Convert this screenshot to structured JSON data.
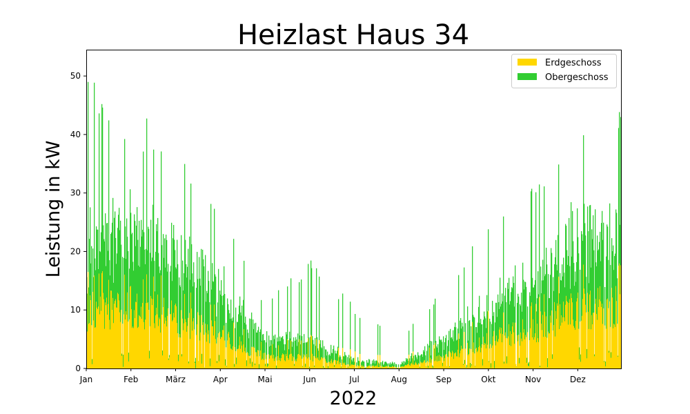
{
  "chart_data": {
    "type": "area",
    "stacked": true,
    "title": "Heizlast Haus 34",
    "xlabel": "2022",
    "ylabel": "Leistung in kW",
    "x_unit": "month",
    "xlim": [
      "Jan",
      "Dez"
    ],
    "ylim": [
      0,
      54.5
    ],
    "yticks": [
      0,
      10,
      20,
      30,
      40,
      50
    ],
    "xticks": [
      "Jan",
      "Feb",
      "März",
      "Apr",
      "Mai",
      "Jun",
      "Jul",
      "Aug",
      "Sep",
      "Okt",
      "Nov",
      "Dez"
    ],
    "grid": false,
    "legend_position": "top-right",
    "series": [
      {
        "name": "Erdgeschoss",
        "color": "#FFD700",
        "envelope_by_month": [
          {
            "month": "Jan",
            "typical": 10,
            "peak": 17
          },
          {
            "month": "Feb",
            "typical": 11,
            "peak": 18
          },
          {
            "month": "März",
            "typical": 9,
            "peak": 15
          },
          {
            "month": "Apr",
            "typical": 6,
            "peak": 11
          },
          {
            "month": "Mai",
            "typical": 2,
            "peak": 4
          },
          {
            "month": "Jun",
            "typical": 2,
            "peak": 6
          },
          {
            "month": "Jul",
            "typical": 0.5,
            "peak": 3
          },
          {
            "month": "Aug",
            "typical": 0.3,
            "peak": 2
          },
          {
            "month": "Sep",
            "typical": 2,
            "peak": 5
          },
          {
            "month": "Okt",
            "typical": 5,
            "peak": 10
          },
          {
            "month": "Nov",
            "typical": 7,
            "peak": 12
          },
          {
            "month": "Dez",
            "typical": 11,
            "peak": 20
          }
        ]
      },
      {
        "name": "Obergeschoss",
        "color": "#32CD32",
        "envelope_by_month": [
          {
            "month": "Jan",
            "typical": 12,
            "peak": 34
          },
          {
            "month": "Feb",
            "typical": 13,
            "peak": 28
          },
          {
            "month": "März",
            "typical": 11,
            "peak": 25
          },
          {
            "month": "Apr",
            "typical": 8,
            "peak": 17
          },
          {
            "month": "Mai",
            "typical": 3,
            "peak": 8
          },
          {
            "month": "Jun",
            "typical": 3,
            "peak": 13
          },
          {
            "month": "Jul",
            "typical": 1,
            "peak": 8
          },
          {
            "month": "Aug",
            "typical": 0.5,
            "peak": 3
          },
          {
            "month": "Sep",
            "typical": 3,
            "peak": 10
          },
          {
            "month": "Okt",
            "typical": 6,
            "peak": 16
          },
          {
            "month": "Nov",
            "typical": 8,
            "peak": 20
          },
          {
            "month": "Dez",
            "typical": 12,
            "peak": 27
          }
        ]
      }
    ]
  }
}
